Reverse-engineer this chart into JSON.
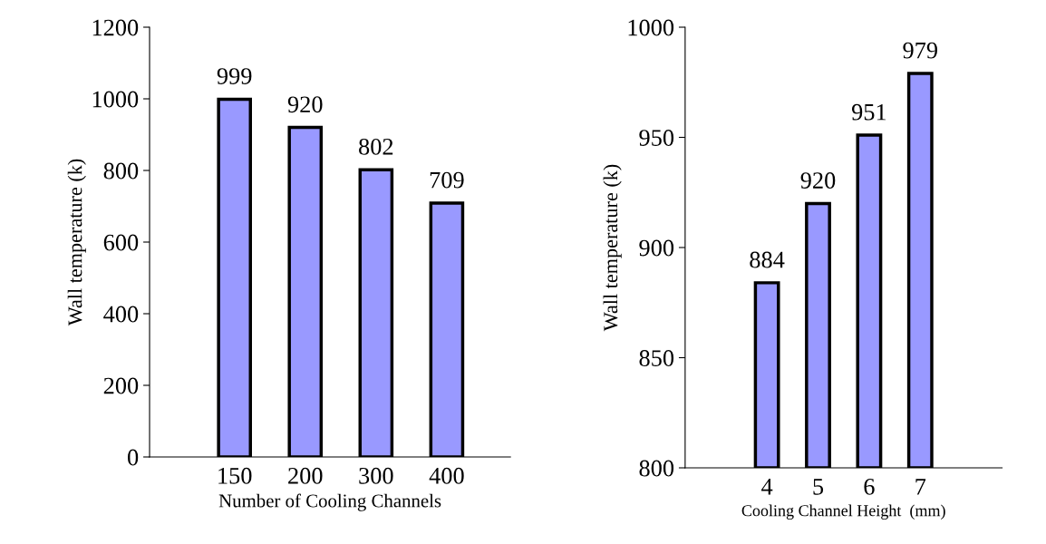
{
  "chart_data": [
    {
      "type": "bar",
      "categories": [
        "150",
        "200",
        "300",
        "400"
      ],
      "values": [
        999,
        920,
        802,
        709
      ],
      "color": "#9999ff",
      "xlabel": "Number of Cooling Channels",
      "ylabel": "Wall temperature (k)",
      "ylim": [
        0,
        1200
      ],
      "yticks": [
        0,
        200,
        400,
        600,
        800,
        1000,
        1200
      ],
      "data_labels": true,
      "grid": false,
      "legend": false
    },
    {
      "type": "bar",
      "categories": [
        "4",
        "5",
        "6",
        "7"
      ],
      "values": [
        884,
        920,
        951,
        979
      ],
      "color": "#9999ff",
      "xlabel": "Cooling Channel Height  (mm)",
      "ylabel": "Wall temperature (k)",
      "ylim": [
        800,
        1000
      ],
      "yticks": [
        800,
        850,
        900,
        950,
        1000
      ],
      "data_labels": true,
      "grid": false,
      "legend": false
    }
  ]
}
